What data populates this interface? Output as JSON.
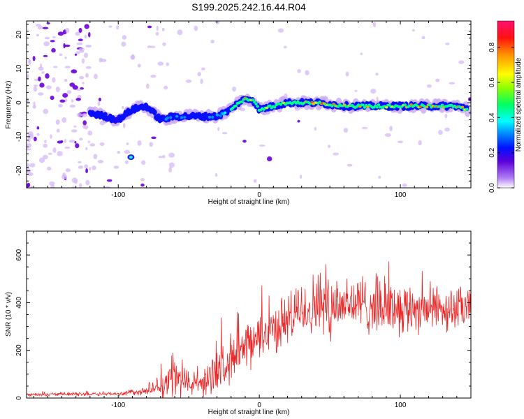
{
  "chart_data": [
    {
      "type": "heatmap",
      "title": "S199.2025.242.16.44.R04",
      "xlabel": "Height of straight line (km)",
      "ylabel": "Frequency (Hz)",
      "xlim": [
        -165,
        150
      ],
      "ylim": [
        -25,
        24
      ],
      "xticks": [
        -100,
        0,
        100
      ],
      "yticks": [
        -20,
        -10,
        0,
        10,
        20
      ],
      "colorbar": {
        "label": "Normalized spectral amplitude",
        "range": [
          0,
          0.95
        ],
        "ticks": [
          0.0,
          0.2,
          0.4,
          0.6,
          0.8
        ]
      },
      "ridge": {
        "x": [
          -120,
          -110,
          -100,
          -90,
          -80,
          -70,
          -60,
          -50,
          -40,
          -30,
          -20,
          -15,
          -10,
          -5,
          0,
          10,
          20,
          40,
          60,
          80,
          100,
          120,
          140,
          148
        ],
        "freq": [
          -3,
          -4,
          -5,
          -2,
          -1,
          -5,
          -4,
          -4,
          -4,
          -4,
          -2,
          0,
          1,
          1,
          -2,
          -1,
          0,
          0,
          -1,
          -1,
          -1,
          -1,
          -1,
          -2
        ],
        "amplitude": [
          0.3,
          0.25,
          0.2,
          0.3,
          0.3,
          0.3,
          0.35,
          0.3,
          0.3,
          0.35,
          0.45,
          0.6,
          0.85,
          0.7,
          0.6,
          0.75,
          0.8,
          0.9,
          0.8,
          0.75,
          0.8,
          0.85,
          0.8,
          0.75
        ]
      }
    },
    {
      "type": "line",
      "xlabel": "Height of straight line (km)",
      "ylabel": "SNR (10 * v/v)",
      "xlim": [
        -165,
        150
      ],
      "ylim": [
        0,
        700
      ],
      "xticks": [
        -100,
        0,
        100
      ],
      "yticks": [
        0,
        200,
        400,
        600
      ],
      "color": "#ee2222",
      "envelope": {
        "x": [
          -165,
          -100,
          -80,
          -65,
          -60,
          -50,
          -40,
          -30,
          -20,
          -10,
          0,
          10,
          20,
          30,
          40,
          50,
          60,
          80,
          100,
          120,
          150
        ],
        "mean": [
          15,
          18,
          30,
          60,
          90,
          60,
          60,
          120,
          170,
          200,
          260,
          290,
          330,
          370,
          390,
          400,
          400,
          390,
          380,
          380,
          370
        ],
        "spread": [
          8,
          10,
          25,
          70,
          110,
          60,
          70,
          110,
          120,
          120,
          120,
          120,
          140,
          150,
          170,
          190,
          160,
          150,
          140,
          120,
          110
        ]
      }
    }
  ]
}
